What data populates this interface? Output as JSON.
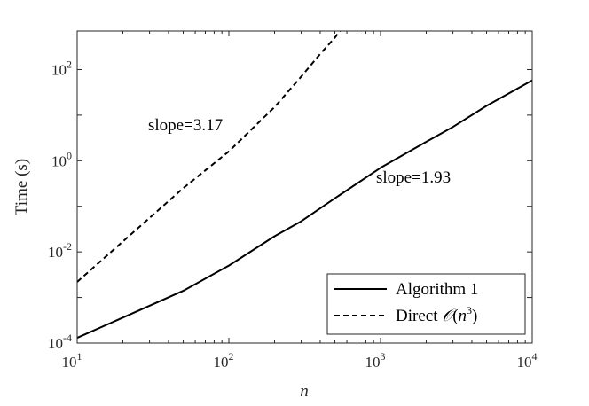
{
  "chart_data": {
    "type": "line",
    "xlabel": "n",
    "ylabel": "Time (s)",
    "xscale": "log",
    "yscale": "log",
    "xlim": [
      10,
      10000
    ],
    "ylim": [
      0.0001,
      700
    ],
    "grid": false,
    "legend_position": "bottom-right",
    "x_ticks": [
      {
        "value": 10,
        "base": "10",
        "exp": "1"
      },
      {
        "value": 100,
        "base": "10",
        "exp": "2"
      },
      {
        "value": 1000,
        "base": "10",
        "exp": "3"
      },
      {
        "value": 10000,
        "base": "10",
        "exp": "4"
      }
    ],
    "y_ticks": [
      {
        "value": 0.0001,
        "base": "10",
        "exp": "-4"
      },
      {
        "value": 0.01,
        "base": "10",
        "exp": "-2"
      },
      {
        "value": 1,
        "base": "10",
        "exp": "0"
      },
      {
        "value": 100,
        "base": "10",
        "exp": "2"
      }
    ],
    "series": [
      {
        "name": "Algorithm 1",
        "style": "solid",
        "color": "#000000",
        "x": [
          10,
          50,
          100,
          200,
          300,
          500,
          1000,
          2000,
          3000,
          5000,
          10000
        ],
        "y": [
          0.00013,
          0.0014,
          0.005,
          0.022,
          0.047,
          0.15,
          0.7,
          2.6,
          5.5,
          16,
          58
        ]
      },
      {
        "name": "Direct 𝒪(n^3)",
        "style": "dashed",
        "color": "#000000",
        "x": [
          10,
          50,
          100,
          200,
          300,
          400,
          500,
          540
        ],
        "y": [
          0.0022,
          0.25,
          1.6,
          15,
          70,
          220,
          500,
          700
        ]
      }
    ],
    "annotations": [
      {
        "text": "slope=3.17",
        "x": 50,
        "y": 6
      },
      {
        "text": "slope=1.93",
        "x": 1000,
        "y": 0.25
      }
    ],
    "legend": {
      "entries": [
        {
          "label": "Algorithm 1",
          "style": "solid"
        },
        {
          "label_prefix": "Direct ",
          "script_o": "𝒪",
          "open": "(",
          "var": "n",
          "sup": "3",
          "close": ")",
          "style": "dashed"
        }
      ]
    }
  }
}
